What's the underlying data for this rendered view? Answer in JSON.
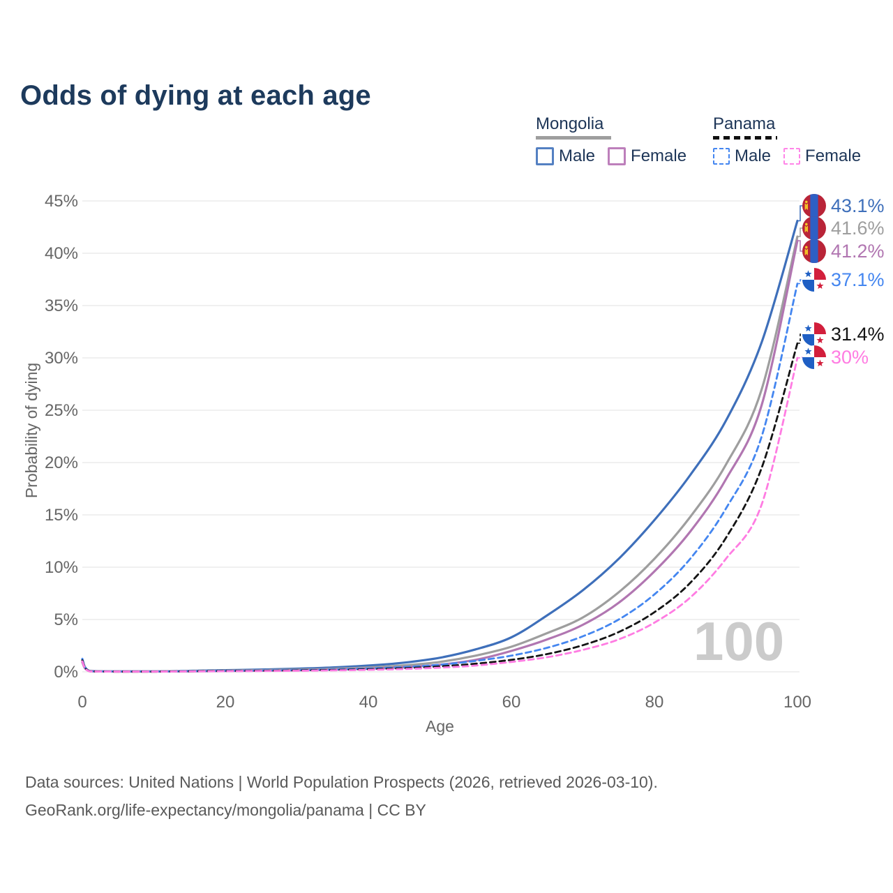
{
  "header": {
    "title": "Odds of dying at each age"
  },
  "legend": {
    "groups": [
      {
        "name": "Mongolia",
        "line_style": "solid",
        "line_color": "#9e9e9e",
        "items": [
          {
            "label": "Male",
            "swatch_color": "#5480c2",
            "swatch_style": "solid"
          },
          {
            "label": "Female",
            "swatch_color": "#bd7fbb",
            "swatch_style": "solid"
          }
        ]
      },
      {
        "name": "Panama",
        "line_style": "dashed",
        "line_color": "#111111",
        "items": [
          {
            "label": "Male",
            "swatch_color": "#4486f0",
            "swatch_style": "dashed"
          },
          {
            "label": "Female",
            "swatch_color": "#ff85e8",
            "swatch_style": "dashed"
          }
        ]
      }
    ]
  },
  "chart_data": {
    "type": "line",
    "title": "Odds of dying at each age",
    "xlabel": "Age",
    "ylabel": "Probability of dying",
    "xlim": [
      0,
      100
    ],
    "ylim_percent": [
      0,
      45
    ],
    "xticks": [
      "0",
      "20",
      "40",
      "60",
      "80",
      "100"
    ],
    "yticks": [
      "0%",
      "5%",
      "10%",
      "15%",
      "20%",
      "25%",
      "30%",
      "35%",
      "40%",
      "45%"
    ],
    "grid": "horizontal",
    "legend_position": "top-right",
    "watermark": "100",
    "ages": [
      0,
      1,
      5,
      10,
      15,
      20,
      25,
      30,
      35,
      40,
      45,
      50,
      55,
      60,
      65,
      70,
      75,
      80,
      85,
      90,
      95,
      100
    ],
    "series": [
      {
        "name": "Mongolia Male",
        "country": "Mongolia",
        "sex": "Male",
        "flag": "mongolia",
        "style": "solid",
        "color": "#3e6fba",
        "end_label": "43.1%",
        "end_value_percent": 43.1,
        "values": [
          1.15,
          0.09,
          0.04,
          0.04,
          0.09,
          0.16,
          0.22,
          0.3,
          0.42,
          0.6,
          0.88,
          1.35,
          2.15,
          3.3,
          5.4,
          7.8,
          10.8,
          14.5,
          18.8,
          24.0,
          31.5,
          43.1
        ]
      },
      {
        "name": "Mongolia",
        "country": "Mongolia",
        "sex": "Both",
        "flag": "mongolia",
        "style": "solid",
        "color": "#9e9e9e",
        "end_label": "41.6%",
        "end_value_percent": 41.6,
        "values": [
          1.0,
          0.08,
          0.03,
          0.03,
          0.07,
          0.12,
          0.16,
          0.21,
          0.29,
          0.42,
          0.62,
          0.95,
          1.55,
          2.4,
          3.7,
          5.2,
          7.6,
          10.8,
          14.8,
          19.8,
          27.0,
          41.6
        ]
      },
      {
        "name": "Mongolia Female",
        "country": "Mongolia",
        "sex": "Female",
        "flag": "mongolia",
        "style": "solid",
        "color": "#b176b1",
        "end_label": "41.2%",
        "end_value_percent": 41.2,
        "values": [
          0.9,
          0.07,
          0.03,
          0.03,
          0.05,
          0.08,
          0.11,
          0.15,
          0.21,
          0.3,
          0.44,
          0.68,
          1.15,
          2.0,
          3.1,
          4.5,
          6.6,
          9.6,
          13.4,
          18.4,
          25.5,
          41.2
        ]
      },
      {
        "name": "Panama Male",
        "country": "Panama",
        "sex": "Male",
        "flag": "panama",
        "style": "dashed",
        "color": "#4486f0",
        "end_label": "37.1%",
        "end_value_percent": 37.1,
        "values": [
          1.25,
          0.07,
          0.03,
          0.03,
          0.06,
          0.1,
          0.13,
          0.17,
          0.23,
          0.32,
          0.46,
          0.68,
          1.05,
          1.55,
          2.3,
          3.4,
          5.0,
          7.4,
          10.8,
          15.6,
          22.5,
          37.1
        ]
      },
      {
        "name": "Panama",
        "country": "Panama",
        "sex": "Both",
        "flag": "panama",
        "style": "dashed",
        "color": "#141414",
        "end_label": "31.4%",
        "end_value_percent": 31.4,
        "values": [
          1.1,
          0.06,
          0.02,
          0.02,
          0.05,
          0.08,
          0.1,
          0.13,
          0.18,
          0.25,
          0.35,
          0.52,
          0.78,
          1.15,
          1.7,
          2.55,
          3.8,
          5.7,
          8.5,
          12.8,
          19.5,
          31.4
        ]
      },
      {
        "name": "Panama Female",
        "country": "Panama",
        "sex": "Female",
        "flag": "panama",
        "style": "dashed",
        "color": "#ff7ce2",
        "end_label": "30%",
        "end_value_percent": 30.0,
        "values": [
          1.0,
          0.05,
          0.02,
          0.02,
          0.04,
          0.06,
          0.08,
          0.1,
          0.14,
          0.19,
          0.27,
          0.4,
          0.6,
          0.95,
          1.4,
          2.1,
          3.1,
          4.7,
          7.1,
          10.8,
          16.0,
          30.0
        ]
      }
    ]
  },
  "footer": {
    "line1": "Data sources: United Nations | World Population Prospects (2026, retrieved 2026-03-10).",
    "line2": "GeoRank.org/life-expectancy/mongolia/panama | CC BY"
  }
}
